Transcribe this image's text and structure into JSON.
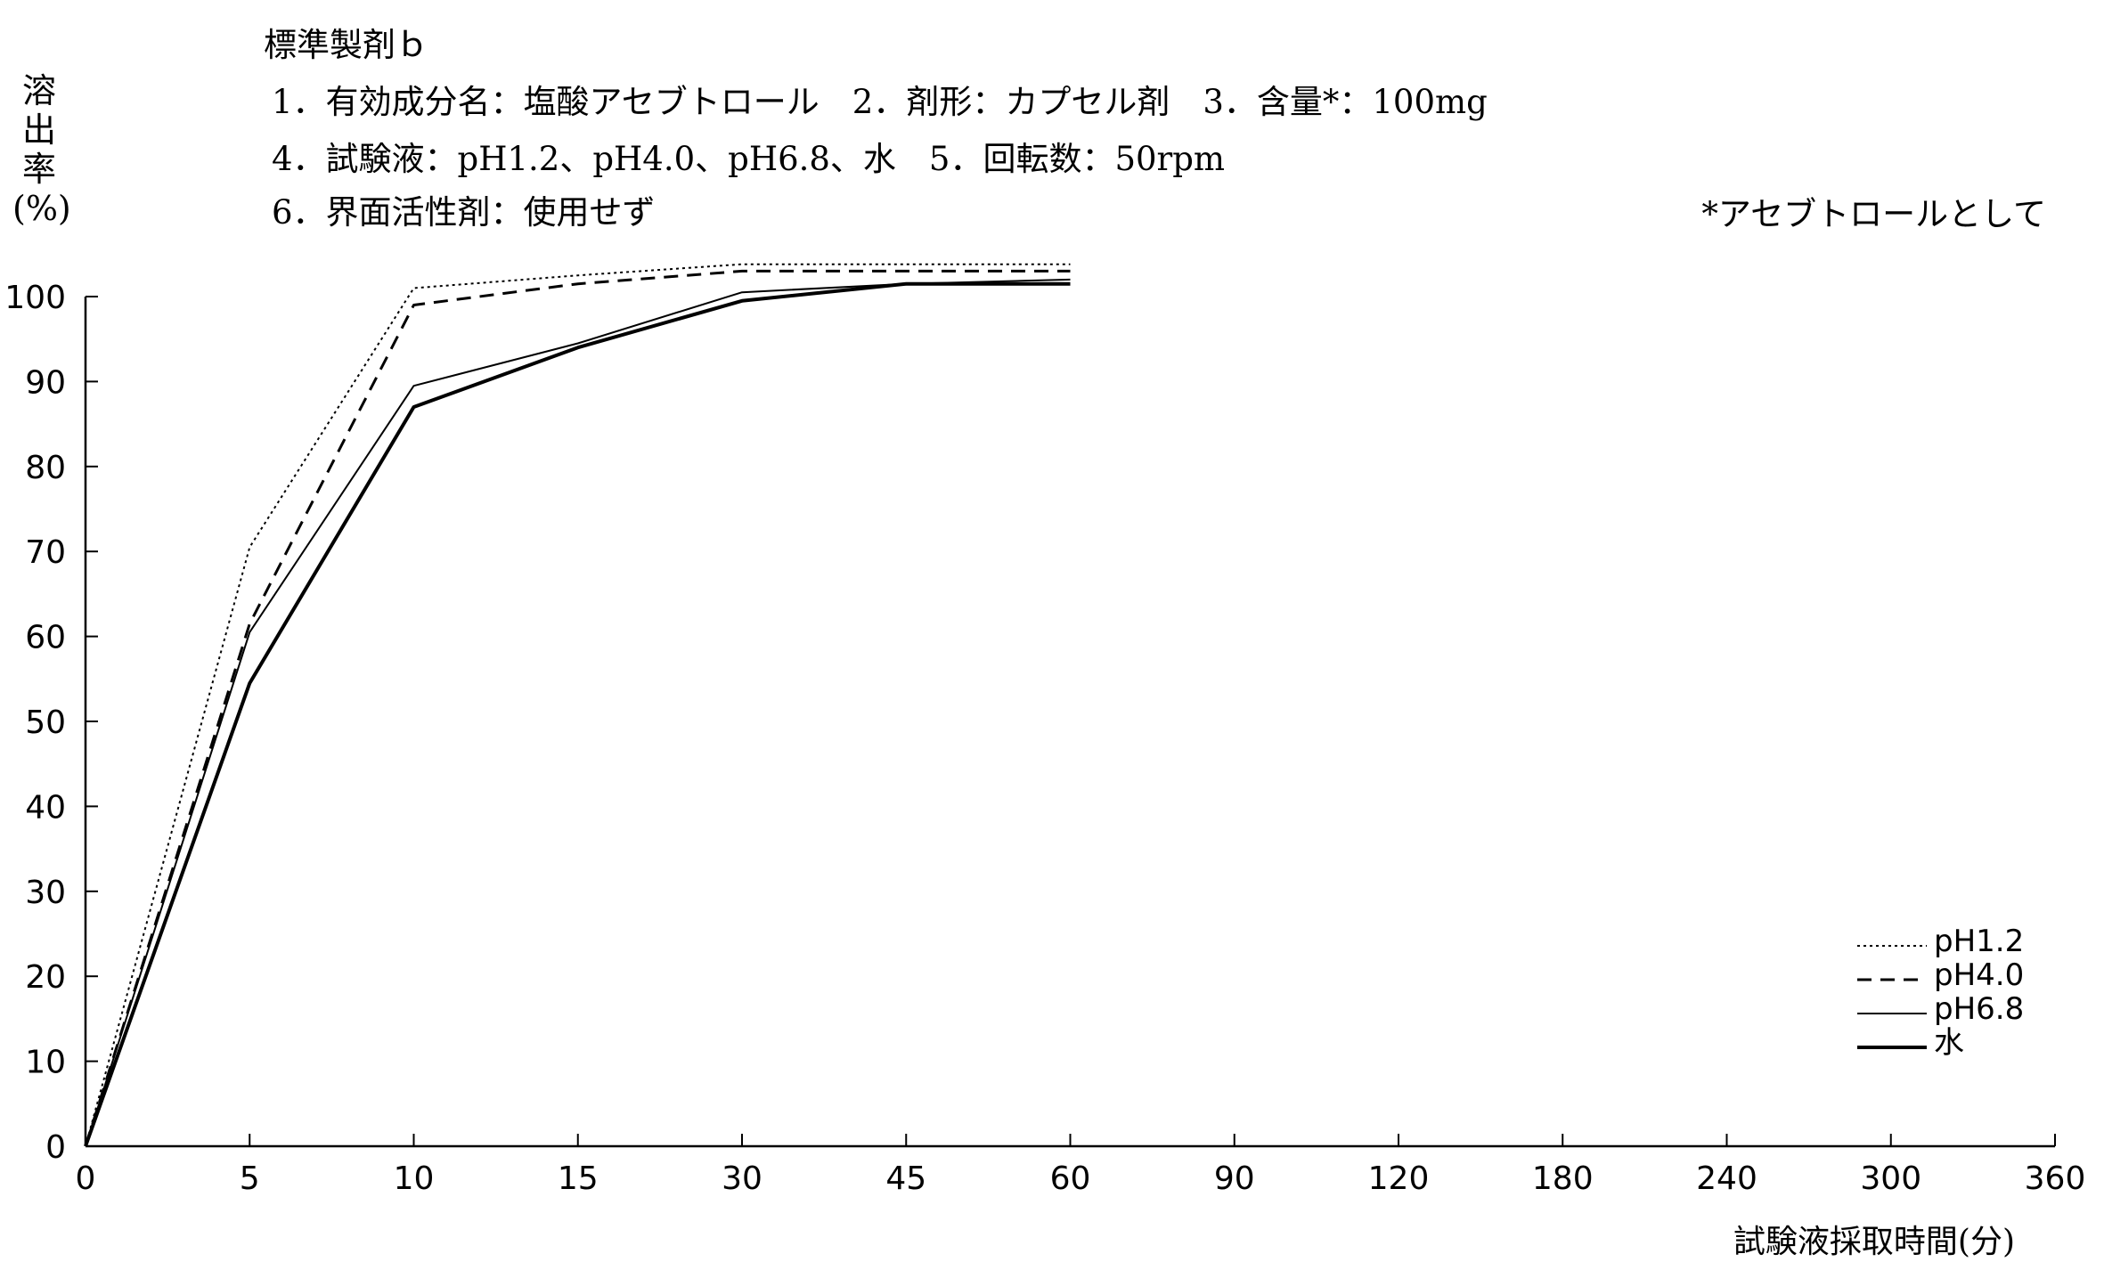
{
  "header": {
    "product": "標準製剤ｂ",
    "line1": "1．有効成分名：塩酸アセブトロール　2．剤形：カプセル剤　3．含量*：100mg",
    "line2": "4．試験液：pH1.2、pH4.0、pH6.8、水　5．回転数：50rpm",
    "line3": "6．界面活性剤：使用せず",
    "note": "*アセブトロールとして"
  },
  "chart_data": {
    "type": "line",
    "title": "",
    "ylabel": "溶出率(%)",
    "xlabel": "試験液採取時間(分)",
    "x_ticks": [
      "0",
      "5",
      "10",
      "15",
      "30",
      "45",
      "60",
      "90",
      "120",
      "180",
      "240",
      "300",
      "360"
    ],
    "y_ticks": [
      "0",
      "10",
      "20",
      "30",
      "40",
      "50",
      "60",
      "70",
      "80",
      "90",
      "100"
    ],
    "ylim": [
      0,
      100
    ],
    "x": [
      0,
      5,
      10,
      15,
      30,
      45,
      60
    ],
    "series": [
      {
        "name": "pH1.2",
        "style": "dotted",
        "values": [
          0,
          70.5,
          101.0,
          102.5,
          103.8,
          103.8,
          103.8
        ]
      },
      {
        "name": "pH4.0",
        "style": "dashed",
        "values": [
          0,
          61.5,
          99.0,
          101.5,
          103.0,
          103.0,
          103.0
        ]
      },
      {
        "name": "pH6.8",
        "style": "thin",
        "values": [
          0,
          60.5,
          89.5,
          94.5,
          100.5,
          101.5,
          102.0
        ]
      },
      {
        "name": "水",
        "style": "thick",
        "values": [
          0,
          54.5,
          87.0,
          94.0,
          99.5,
          101.5,
          101.5
        ]
      }
    ],
    "legend_position": "bottom-right",
    "grid": false,
    "line_color": "#000000"
  }
}
